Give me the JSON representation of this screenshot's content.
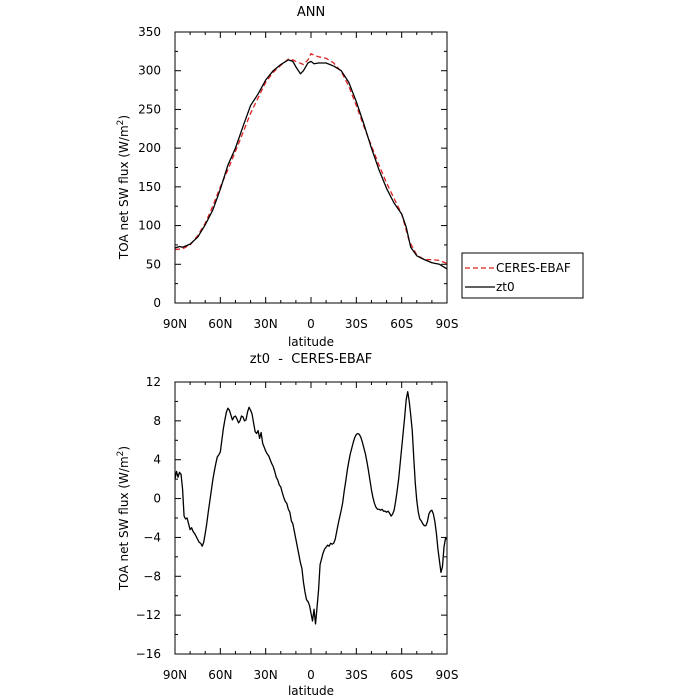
{
  "chart_data": [
    {
      "type": "line",
      "title": "ANN",
      "xlabel": "latitude",
      "ylabel": "TOA net SW flux (W/m",
      "ylabel_sup": "2",
      "ylabel_close": ")",
      "xlim": [
        90,
        -90
      ],
      "ylim": [
        0,
        350
      ],
      "xticks": [
        90,
        60,
        30,
        0,
        -30,
        -60,
        -90
      ],
      "xtick_labels": [
        "90N",
        "60N",
        "30N",
        "0",
        "30S",
        "60S",
        "90S"
      ],
      "yticks": [
        0,
        50,
        100,
        150,
        200,
        250,
        300,
        350
      ],
      "ytick_labels": [
        "0",
        "50",
        "100",
        "150",
        "200",
        "250",
        "300",
        "350"
      ],
      "legend_position": "right-bottom, outside plot",
      "series": [
        {
          "name": "CERES-EBAF",
          "color": "#dd2222",
          "dash": "dashed",
          "x": [
            90,
            85,
            80,
            75,
            70,
            65,
            60,
            55,
            50,
            45,
            40,
            35,
            30,
            25,
            20,
            15,
            12,
            10,
            5,
            2,
            0,
            -2,
            -5,
            -10,
            -15,
            -20,
            -25,
            -30,
            -35,
            -40,
            -45,
            -50,
            -55,
            -60,
            -65,
            -70,
            -75,
            -80,
            -85,
            -90
          ],
          "y": [
            69,
            70,
            75,
            87,
            103,
            125,
            150,
            172,
            196,
            220,
            245,
            265,
            285,
            298,
            307,
            315,
            314,
            312,
            308,
            314,
            322,
            320,
            318,
            316,
            310,
            299,
            280,
            255,
            228,
            203,
            178,
            155,
            135,
            115,
            80,
            62,
            56,
            56,
            55,
            51
          ]
        },
        {
          "name": "zt0",
          "color": "#000000",
          "dash": "solid",
          "x": [
            90,
            87,
            85,
            80,
            75,
            70,
            65,
            60,
            55,
            50,
            45,
            40,
            35,
            30,
            25,
            20,
            15,
            12,
            10,
            7,
            5,
            2,
            0,
            -2,
            -5,
            -10,
            -15,
            -20,
            -25,
            -30,
            -35,
            -40,
            -45,
            -50,
            -55,
            -60,
            -63,
            -66,
            -70,
            -75,
            -80,
            -85,
            -90
          ],
          "y": [
            71,
            73,
            72,
            76,
            85,
            101,
            120,
            147,
            178,
            200,
            228,
            255,
            270,
            288,
            300,
            308,
            314,
            312,
            305,
            296,
            300,
            310,
            312,
            309,
            310,
            310,
            306,
            300,
            285,
            260,
            231,
            200,
            172,
            148,
            129,
            115,
            98,
            72,
            61,
            56,
            52,
            50,
            44
          ]
        }
      ]
    },
    {
      "type": "line",
      "title": "zt0  -  CERES-EBAF",
      "xlabel": "latitude",
      "ylabel": "TOA net SW flux (W/m",
      "ylabel_sup": "2",
      "ylabel_close": ")",
      "xlim": [
        90,
        -90
      ],
      "ylim": [
        -16,
        12
      ],
      "xticks": [
        90,
        60,
        30,
        0,
        -30,
        -60,
        -90
      ],
      "xtick_labels": [
        "90N",
        "60N",
        "30N",
        "0",
        "30S",
        "60S",
        "90S"
      ],
      "yticks": [
        -16,
        -12,
        -8,
        -4,
        0,
        4,
        8,
        12
      ],
      "ytick_labels": [
        "−16",
        "−12",
        "−8",
        "−4",
        "0",
        "4",
        "8",
        "12"
      ],
      "series": [
        {
          "color": "#000000",
          "x": [
            90,
            89,
            88,
            87,
            86,
            85,
            84,
            83,
            82,
            81,
            80,
            79,
            78,
            77,
            76,
            75,
            74,
            73,
            72,
            71,
            70,
            69,
            68,
            67,
            66,
            65,
            64,
            63,
            62,
            61,
            60,
            59,
            58,
            57,
            56,
            55,
            54,
            53,
            52,
            51,
            50,
            49,
            48,
            47,
            46,
            45,
            44,
            43,
            42,
            41,
            40,
            39,
            38,
            37,
            36,
            35,
            34,
            33,
            32,
            31,
            30,
            29,
            28,
            27,
            26,
            25,
            24,
            23,
            22,
            21,
            20,
            19,
            18,
            17,
            16,
            15,
            14,
            13,
            12,
            11,
            10,
            9,
            8,
            7,
            6,
            5,
            4,
            3,
            2,
            1,
            0,
            -1,
            -2,
            -3,
            -4,
            -5,
            -6,
            -7,
            -8,
            -9,
            -10,
            -11,
            -12,
            -13,
            -14,
            -15,
            -16,
            -17,
            -18,
            -19,
            -20,
            -21,
            -22,
            -23,
            -24,
            -25,
            -26,
            -27,
            -28,
            -29,
            -30,
            -31,
            -32,
            -33,
            -34,
            -35,
            -36,
            -37,
            -38,
            -39,
            -40,
            -41,
            -42,
            -43,
            -44,
            -45,
            -46,
            -47,
            -48,
            -49,
            -50,
            -51,
            -52,
            -53,
            -54,
            -55,
            -56,
            -57,
            -58,
            -59,
            -60,
            -61,
            -62,
            -63,
            -64,
            -65,
            -66,
            -67,
            -68,
            -69,
            -70,
            -71,
            -72,
            -73,
            -74,
            -75,
            -76,
            -77,
            -78,
            -79,
            -80,
            -81,
            -82,
            -83,
            -84,
            -85,
            -86,
            -87,
            -88,
            -89,
            -90
          ],
          "y": [
            2.0,
            2.8,
            2.2,
            2.7,
            2.5,
            1.0,
            -1.8,
            -2.1,
            -2.0,
            -2.6,
            -3.2,
            -3.0,
            -3.4,
            -3.6,
            -3.9,
            -4.2,
            -4.5,
            -4.6,
            -4.9,
            -4.5,
            -3.6,
            -2.6,
            -1.4,
            -0.3,
            0.8,
            1.9,
            2.8,
            3.6,
            4.3,
            4.5,
            4.8,
            6.0,
            7.2,
            8.1,
            8.9,
            9.3,
            9.1,
            8.6,
            8.1,
            8.4,
            8.5,
            8.2,
            7.8,
            8.0,
            8.5,
            8.4,
            8.0,
            8.1,
            8.9,
            9.4,
            9.1,
            8.7,
            7.8,
            6.9,
            6.7,
            7.0,
            6.2,
            6.8,
            5.7,
            5.3,
            4.9,
            4.6,
            4.4,
            4.0,
            3.6,
            3.3,
            2.8,
            2.2,
            1.9,
            1.4,
            1.2,
            0.6,
            0.1,
            -0.3,
            -0.5,
            -1.1,
            -1.4,
            -2.3,
            -2.6,
            -3.4,
            -4.2,
            -5.0,
            -5.8,
            -6.6,
            -7.2,
            -8.6,
            -9.6,
            -10.4,
            -10.6,
            -11.0,
            -11.8,
            -12.6,
            -11.4,
            -12.9,
            -11.2,
            -9.4,
            -6.8,
            -6.2,
            -5.6,
            -5.2,
            -5.0,
            -4.8,
            -4.9,
            -4.6,
            -4.7,
            -4.6,
            -4.2,
            -3.4,
            -2.6,
            -1.9,
            -1.2,
            -0.4,
            0.8,
            1.8,
            2.9,
            3.8,
            4.6,
            5.2,
            5.8,
            6.3,
            6.6,
            6.7,
            6.6,
            6.3,
            5.8,
            5.2,
            4.6,
            3.8,
            2.9,
            1.9,
            0.9,
            0.1,
            -0.5,
            -0.9,
            -1.1,
            -1.1,
            -1.2,
            -1.1,
            -1.3,
            -1.3,
            -1.4,
            -1.3,
            -1.5,
            -1.8,
            -1.6,
            -1.2,
            -0.3,
            0.8,
            2.0,
            3.6,
            5.2,
            6.8,
            8.4,
            10.2,
            11.0,
            10.0,
            8.6,
            7.0,
            4.2,
            1.6,
            -0.2,
            -1.4,
            -2.1,
            -2.3,
            -2.6,
            -2.8,
            -2.8,
            -2.4,
            -1.6,
            -1.3,
            -1.2,
            -1.6,
            -2.4,
            -3.6,
            -5.2,
            -6.4,
            -7.6,
            -7.0,
            -5.0,
            -4.1,
            -4.2
          ]
        }
      ]
    }
  ]
}
